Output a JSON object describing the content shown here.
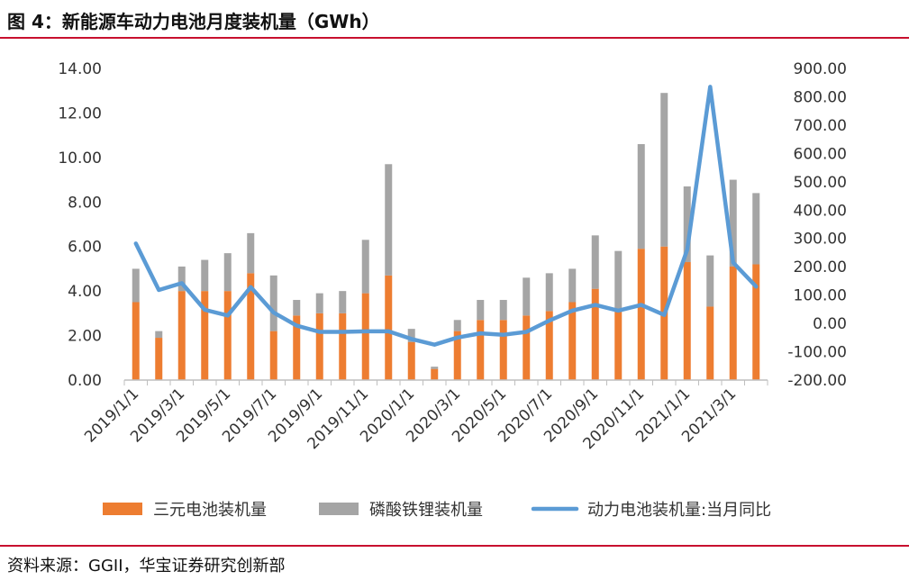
{
  "header": {
    "title": "图 4：新能源车动力电池月度装机量（GWh）"
  },
  "footer": {
    "source": "资料来源：GGII，华宝证券研究创新部"
  },
  "chart_data": {
    "type": "bar",
    "stacked": true,
    "title": "图 4：新能源车动力电池月度装机量（GWh）",
    "categories": [
      "2019/1/1",
      "2019/2/1",
      "2019/3/1",
      "2019/4/1",
      "2019/5/1",
      "2019/6/1",
      "2019/7/1",
      "2019/8/1",
      "2019/9/1",
      "2019/10/1",
      "2019/11/1",
      "2019/12/1",
      "2020/1/1",
      "2020/2/1",
      "2020/3/1",
      "2020/4/1",
      "2020/5/1",
      "2020/6/1",
      "2020/7/1",
      "2020/8/1",
      "2020/9/1",
      "2020/10/1",
      "2020/11/1",
      "2020/12/1",
      "2021/1/1",
      "2021/2/1",
      "2021/3/1",
      "2021/4/1"
    ],
    "x_tick_labels": [
      "2019/1/1",
      "2019/3/1",
      "2019/5/1",
      "2019/7/1",
      "2019/9/1",
      "2019/11/1",
      "2020/1/1",
      "2020/3/1",
      "2020/5/1",
      "2020/7/1",
      "2020/9/1",
      "2020/11/1",
      "2021/1/1",
      "2021/3/1"
    ],
    "series": [
      {
        "name": "三元电池装机量",
        "axis": "left",
        "kind": "bar",
        "color": "#ed7d31",
        "values": [
          3.5,
          1.9,
          4.0,
          4.0,
          4.0,
          4.8,
          2.2,
          2.9,
          3.0,
          3.0,
          3.9,
          4.7,
          1.7,
          0.5,
          2.2,
          2.7,
          2.7,
          2.9,
          3.1,
          3.5,
          4.1,
          3.2,
          5.9,
          6.0,
          5.3,
          3.3,
          5.1,
          5.2
        ]
      },
      {
        "name": "磷酸铁锂装机量",
        "axis": "left",
        "kind": "bar",
        "color": "#a5a5a5",
        "values": [
          1.5,
          0.3,
          1.1,
          1.4,
          1.7,
          1.8,
          2.5,
          0.7,
          0.9,
          1.0,
          2.4,
          5.0,
          0.6,
          0.1,
          0.5,
          0.9,
          0.9,
          1.7,
          1.7,
          1.5,
          2.4,
          2.6,
          4.7,
          6.9,
          3.4,
          2.3,
          3.9,
          3.2
        ]
      },
      {
        "name": "动力电池装机量:当月同比",
        "axis": "right",
        "kind": "line",
        "color": "#5b9bd5",
        "values": [
          282,
          118,
          142,
          48,
          28,
          128,
          38,
          -8,
          -30,
          -30,
          -28,
          -28,
          -55,
          -75,
          -50,
          -35,
          -40,
          -30,
          10,
          45,
          65,
          45,
          65,
          30,
          260,
          835,
          215,
          130
        ]
      }
    ],
    "left_axis": {
      "min": 0,
      "max": 14,
      "step": 2,
      "tick_labels": [
        "0.00",
        "2.00",
        "4.00",
        "6.00",
        "8.00",
        "10.00",
        "12.00",
        "14.00"
      ]
    },
    "right_axis": {
      "min": -200,
      "max": 900,
      "step": 100,
      "tick_labels": [
        "-200.00",
        "-100.00",
        "0.00",
        "100.00",
        "200.00",
        "300.00",
        "400.00",
        "500.00",
        "600.00",
        "700.00",
        "800.00",
        "900.00"
      ]
    },
    "legend": {
      "placement": "bottom"
    },
    "grid": false
  }
}
